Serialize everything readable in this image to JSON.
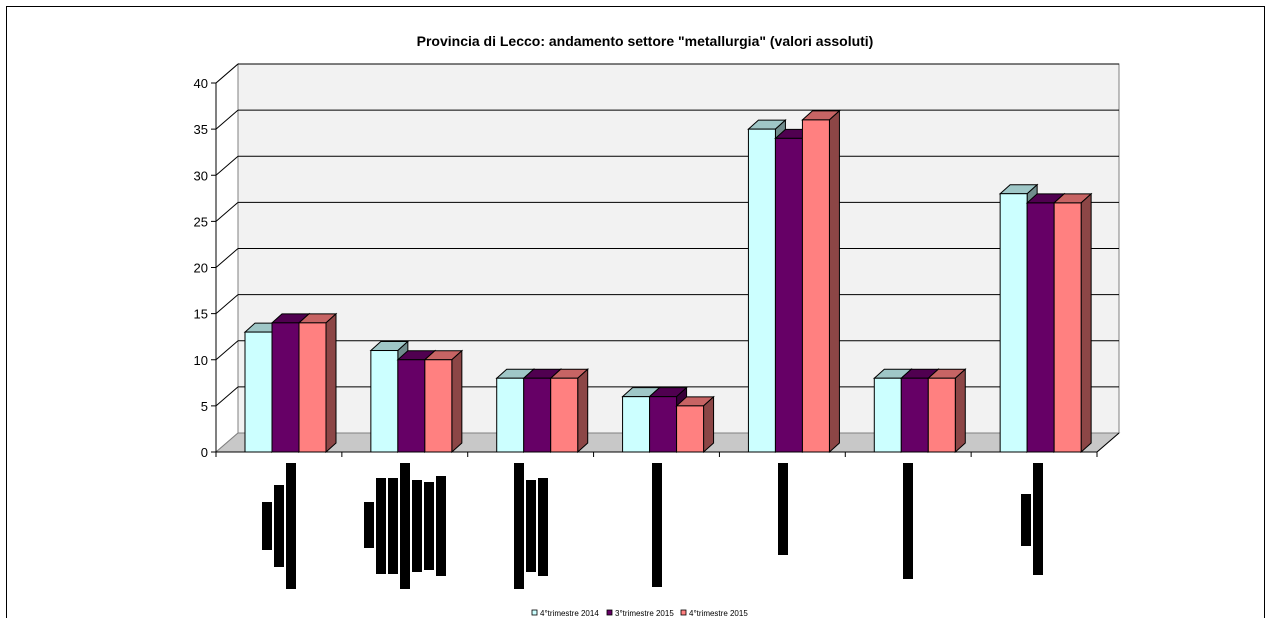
{
  "chart_data": {
    "type": "bar",
    "title": "Provincia di Lecco: andamento settore \"metallurgia\" (valori assoluti)",
    "xlabel": "",
    "ylabel": "",
    "ylim": [
      0,
      40
    ],
    "yticks": [
      0,
      5,
      10,
      15,
      20,
      25,
      30,
      35,
      40
    ],
    "categories": [
      "",
      "",
      "",
      "",
      "",
      "",
      ""
    ],
    "series": [
      {
        "name": "4°trimestre 2014",
        "values": [
          13,
          11,
          8,
          6,
          35,
          8,
          28
        ],
        "color": "#ccffff"
      },
      {
        "name": "3°trimestre 2015",
        "values": [
          14,
          10,
          8,
          6,
          34,
          8,
          27
        ],
        "color": "#660066"
      },
      {
        "name": "4°trimestre 2015",
        "values": [
          14,
          10,
          8,
          5,
          36,
          8,
          27
        ],
        "color": "#ff8080"
      }
    ],
    "grid": true,
    "legend_position": "bottom",
    "style": "3d-clustered-column"
  }
}
